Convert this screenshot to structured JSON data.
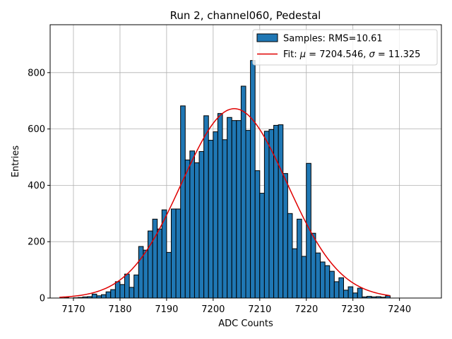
{
  "chart_data": {
    "type": "bar",
    "title": "Run 2, channel060, Pedestal",
    "xlabel": "ADC Counts",
    "ylabel": "Entries",
    "xlim": [
      7165,
      7249
    ],
    "ylim": [
      0,
      970
    ],
    "xticks": [
      7170,
      7180,
      7190,
      7200,
      7210,
      7220,
      7230,
      7240
    ],
    "yticks": [
      0,
      200,
      400,
      600,
      800
    ],
    "grid": true,
    "legend_position": "top-right",
    "bin_width": 1,
    "bin_start": 7168,
    "bar_color": "#1f77b4",
    "fit_color": "#e00000",
    "values": [
      2,
      0,
      1,
      2,
      4,
      5,
      14,
      8,
      12,
      22,
      30,
      58,
      48,
      85,
      38,
      82,
      183,
      170,
      238,
      280,
      245,
      313,
      162,
      316,
      316,
      682,
      490,
      522,
      480,
      520,
      647,
      560,
      590,
      655,
      562,
      641,
      630,
      630,
      752,
      595,
      843,
      452,
      372,
      592,
      598,
      613,
      615,
      442,
      300,
      175,
      280,
      148,
      478,
      230,
      160,
      128,
      115,
      95,
      58,
      72,
      28,
      40,
      18,
      35,
      4,
      6,
      4,
      5,
      3,
      8
    ],
    "fit": {
      "mu": 7204.546,
      "sigma": 11.325,
      "amplitude": 672,
      "x_range": [
        7167,
        7238
      ]
    },
    "legend": {
      "samples_label": "Samples: RMS=10.61",
      "fit_prefix": "Fit: ",
      "mu_symbol": "μ",
      "mu_text": " = 7204.546, ",
      "sigma_symbol": "σ",
      "sigma_text": " = 11.325"
    }
  }
}
